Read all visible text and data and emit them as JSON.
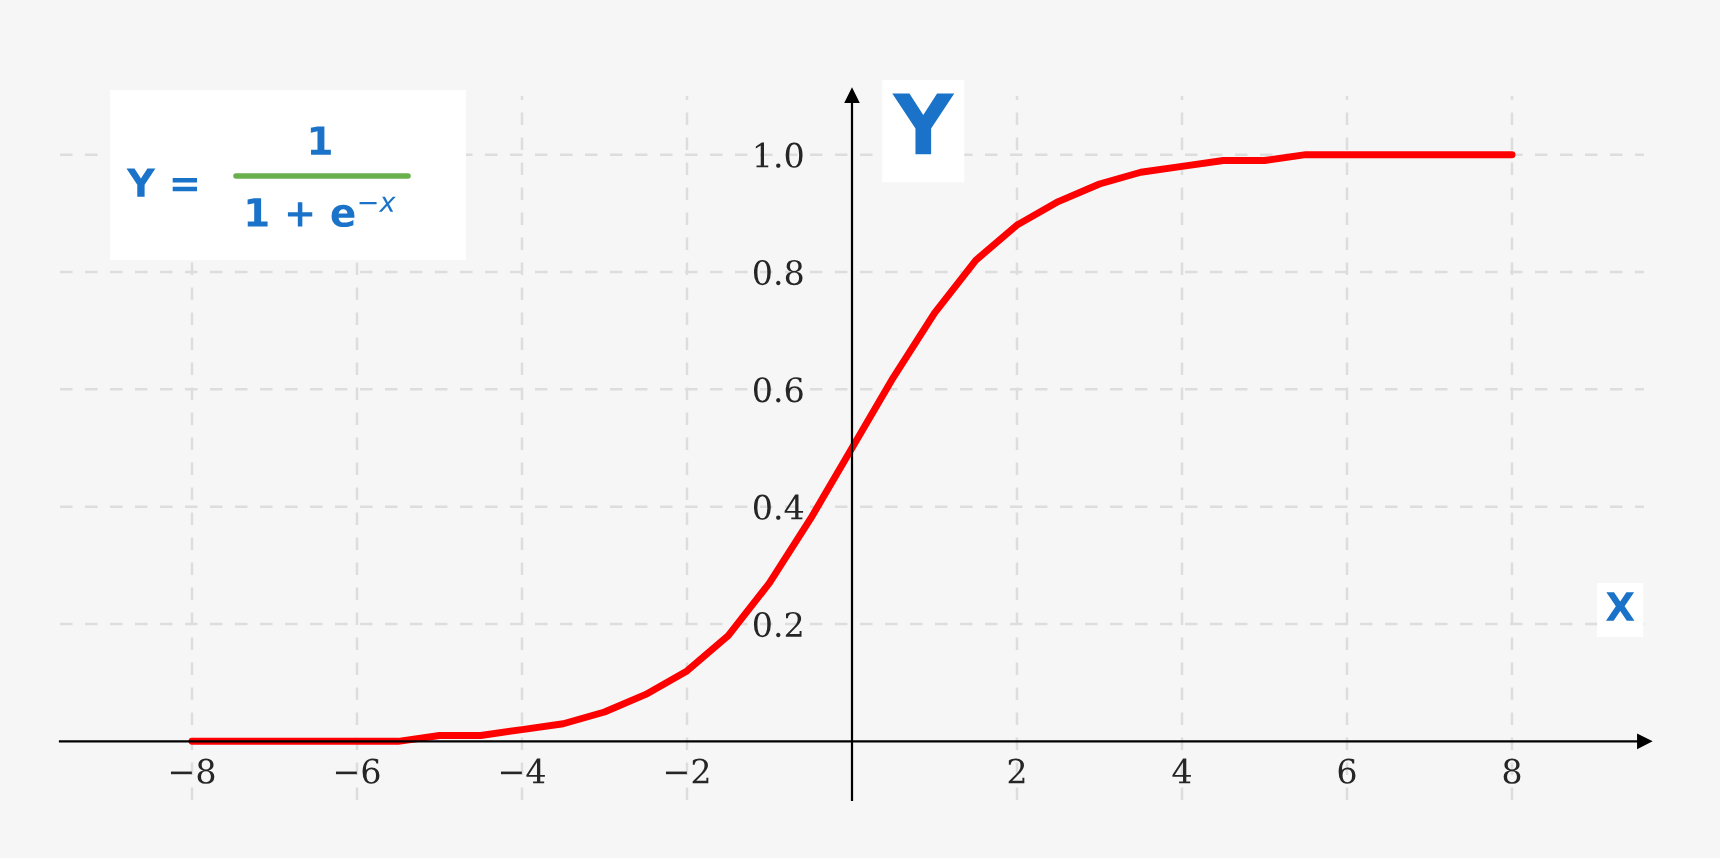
{
  "chart_data": {
    "type": "line",
    "xlabel": "X",
    "ylabel": "Y",
    "annotations": [
      "Y =",
      "1",
      "1 + e$^{−x}$"
    ],
    "x": [
      -8,
      -7.5,
      -7,
      -6.5,
      -6,
      -5.5,
      -5,
      -4.5,
      -4,
      -3.5,
      -3,
      -2.5,
      -2,
      -1.5,
      -1,
      -0.5,
      0,
      0.5,
      1,
      1.5,
      2,
      2.5,
      3,
      3.5,
      4,
      4.5,
      5,
      5.5,
      6,
      6.5,
      7,
      7.5,
      8
    ],
    "series": [
      {
        "color": "#ff0000",
        "values": [
          0.0,
          0.0,
          0.0,
          0.0,
          0.0,
          0.0,
          0.01,
          0.01,
          0.02,
          0.03,
          0.05,
          0.08,
          0.12,
          0.18,
          0.27,
          0.38,
          0.5,
          0.62,
          0.73,
          0.82,
          0.88,
          0.92,
          0.95,
          0.97,
          0.98,
          0.99,
          0.99,
          1.0,
          1.0,
          1.0,
          1.0,
          1.0,
          1.0
        ]
      }
    ],
    "xlim": [
      -9.6,
      9.6
    ],
    "ylim": [
      -0.1,
      1.1
    ],
    "xticks": [
      {
        "value": -8,
        "label": "−8"
      },
      {
        "value": -6,
        "label": "−6"
      },
      {
        "value": -4,
        "label": "−4"
      },
      {
        "value": -2,
        "label": "−2"
      },
      2,
      4,
      6,
      8
    ],
    "yticks": [
      0.2,
      0.4,
      0.6,
      0.8,
      {
        "value": 1,
        "label": "1.0"
      }
    ],
    "grid": true,
    "marker": "none",
    "line_style": "solid"
  }
}
